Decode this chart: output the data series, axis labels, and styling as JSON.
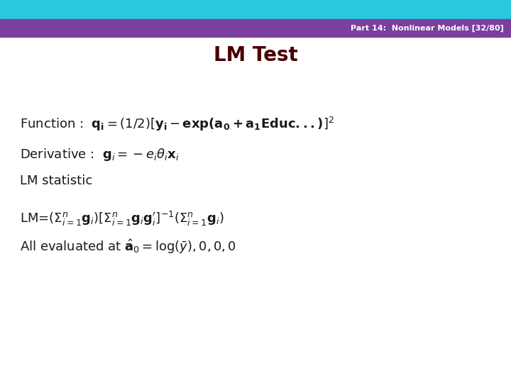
{
  "title": "LM Test",
  "header_text": "Part 14:  Nonlinear Models [32/80]",
  "bg_color": "#ffffff",
  "header_bar1_color": "#29c8e0",
  "header_bar2_color": "#7b3fa0",
  "header_text_color": "#ffffff",
  "title_color": "#4a0000",
  "body_color": "#1a1a1a",
  "fig_width": 7.2,
  "fig_height": 5.4,
  "dpi": 100
}
